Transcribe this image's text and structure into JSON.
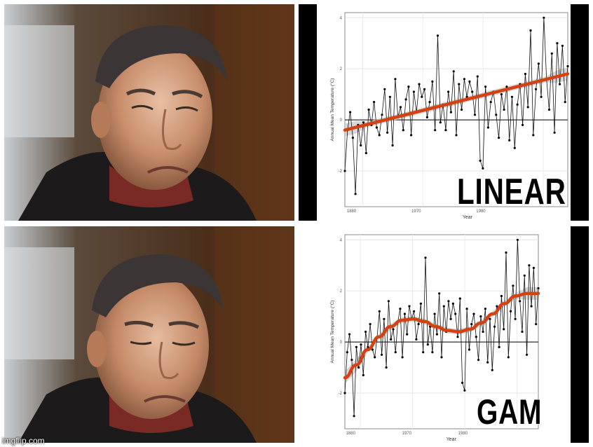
{
  "colors": {
    "fit_line": "#d64112",
    "ribbon": "#c9c9c9",
    "points": "#000000",
    "caption_text": "#000000"
  },
  "watermark": "imgflip.com",
  "panels": [
    {
      "caption": "LINEAR",
      "chart_data": {
        "type": "line",
        "xlabel": "Year",
        "ylabel": "Annual Mean Temperature (°C)",
        "xticks": [
          "1880",
          "1970",
          "1980"
        ],
        "yticks": [
          "-2",
          "0",
          "2",
          "4"
        ],
        "ylim": [
          -3.4,
          4.2
        ],
        "grid": true,
        "fit": "linear",
        "fit_color": "#d64112",
        "x_index_range": [
          0,
          84
        ],
        "series": [
          {
            "values": [
              -2.0,
              -0.4,
              0.3,
              -0.7,
              -2.9,
              -0.2,
              -1.0,
              -0.1,
              -1.3,
              0.4,
              -0.2,
              0.7,
              -0.3,
              -0.6,
              0.2,
              1.2,
              -0.5,
              0.9,
              -1.0,
              1.6,
              0.1,
              0.5,
              -0.4,
              0.8,
              1.3,
              -0.6,
              1.1,
              0.3,
              1.4,
              0.9,
              1.2,
              0.1,
              0.7,
              1.5,
              -0.4,
              3.3,
              -0.1,
              0.6,
              -0.4,
              1.1,
              0.3,
              1.9,
              -0.6,
              1.4,
              0.4,
              1.6,
              0.9,
              1.5,
              1.1,
              0.2,
              1.7,
              -1.6,
              -1.9,
              1.3,
              -0.3,
              0.7,
              1.1,
              0.2,
              -0.7,
              1.0,
              0.4,
              1.3,
              -0.8,
              0.9,
              -1.1,
              0.6,
              1.4,
              -0.2,
              1.8,
              0.5,
              3.5,
              -0.6,
              1.2,
              2.2,
              0.9,
              4.0,
              1.6,
              0.4,
              2.6,
              -0.5,
              3.0,
              1.4,
              2.9,
              0.7,
              2.1
            ],
            "fit_values": [
              -0.4,
              1.8
            ]
          }
        ]
      }
    },
    {
      "caption": "GAM",
      "chart_data": {
        "type": "line",
        "xlabel": "Year",
        "ylabel": "Annual Mean Temperature (°C)",
        "xticks": [
          "1880",
          "1970",
          "1980"
        ],
        "yticks": [
          "-2",
          "0",
          "2",
          "4"
        ],
        "ylim": [
          -3.4,
          4.2
        ],
        "grid": true,
        "fit": "gam",
        "fit_color": "#d64112",
        "x_index_range": [
          0,
          84
        ],
        "series": [
          {
            "values": [
              -2.0,
              -0.4,
              0.3,
              -0.7,
              -2.9,
              -0.2,
              -1.0,
              -0.1,
              -1.3,
              0.4,
              -0.2,
              0.7,
              -0.3,
              -0.6,
              0.2,
              1.2,
              -0.5,
              0.9,
              -1.0,
              1.6,
              0.1,
              0.5,
              -0.4,
              0.8,
              1.3,
              -0.6,
              1.1,
              0.3,
              1.4,
              0.9,
              1.2,
              0.1,
              0.7,
              1.5,
              -0.4,
              3.3,
              -0.1,
              0.6,
              -0.4,
              1.1,
              0.3,
              1.9,
              -0.6,
              1.4,
              0.4,
              1.6,
              0.9,
              1.5,
              1.1,
              0.2,
              1.7,
              -1.6,
              -1.9,
              1.3,
              -0.3,
              0.7,
              1.1,
              0.2,
              -0.7,
              1.0,
              0.4,
              1.3,
              -0.8,
              0.9,
              -1.1,
              0.6,
              1.4,
              -0.2,
              1.8,
              0.5,
              3.5,
              -0.6,
              1.2,
              2.2,
              0.9,
              4.0,
              1.6,
              0.4,
              2.6,
              -0.5,
              3.0,
              1.4,
              2.9,
              0.7,
              2.1
            ],
            "fit_values": [
              -1.4,
              -0.9,
              -0.3,
              0.2,
              0.6,
              0.85,
              0.9,
              0.8,
              0.6,
              0.45,
              0.4,
              0.5,
              0.75,
              1.1,
              1.5,
              1.8,
              1.9,
              1.9
            ]
          }
        ]
      }
    }
  ]
}
